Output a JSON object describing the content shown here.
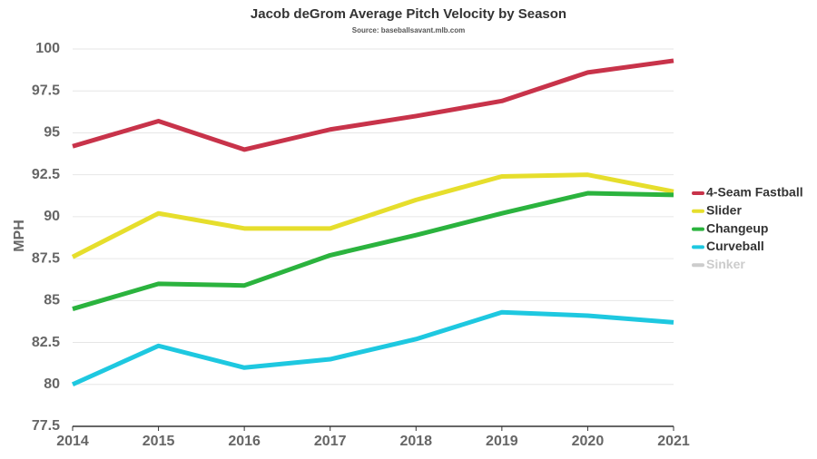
{
  "chart_data": {
    "type": "line",
    "title": "Jacob deGrom Average Pitch Velocity by Season",
    "subtitle": "Source: baseballsavant.mlb.com",
    "y_label": "MPH",
    "categories": [
      "2014",
      "2015",
      "2016",
      "2017",
      "2018",
      "2019",
      "2020",
      "2021"
    ],
    "series": [
      {
        "name": "4-Seam Fastball",
        "color": "#c8334a",
        "values": [
          94.2,
          95.7,
          94.0,
          95.2,
          96.0,
          96.9,
          98.6,
          99.3
        ]
      },
      {
        "name": "Slider",
        "color": "#e6de2c",
        "values": [
          87.6,
          90.2,
          89.3,
          89.3,
          91.0,
          92.4,
          92.5,
          91.5
        ]
      },
      {
        "name": "Changeup",
        "color": "#2bb33e",
        "values": [
          84.5,
          86.0,
          85.9,
          87.7,
          88.9,
          90.2,
          91.4,
          91.3
        ]
      },
      {
        "name": "Curveball",
        "color": "#1ec8e0",
        "values": [
          80.0,
          82.3,
          81.0,
          81.5,
          82.7,
          84.3,
          84.1,
          83.7
        ]
      },
      {
        "name": "Sinker",
        "color": "#cccccc",
        "values": [
          null,
          null,
          null,
          null,
          null,
          null,
          null,
          null
        ]
      }
    ],
    "ylim": [
      77.5,
      100
    ],
    "yticks": [
      77.5,
      80,
      82.5,
      85,
      87.5,
      90,
      92.5,
      95,
      97.5,
      100
    ],
    "grid": true,
    "legend": "right"
  }
}
